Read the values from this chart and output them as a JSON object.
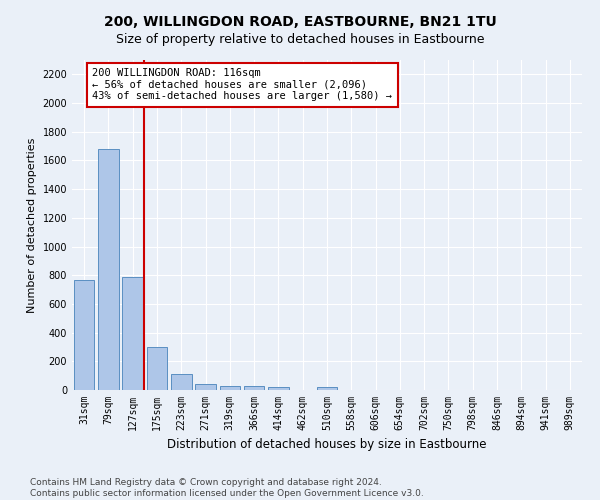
{
  "title": "200, WILLINGDON ROAD, EASTBOURNE, BN21 1TU",
  "subtitle": "Size of property relative to detached houses in Eastbourne",
  "xlabel": "Distribution of detached houses by size in Eastbourne",
  "ylabel": "Number of detached properties",
  "categories": [
    "31sqm",
    "79sqm",
    "127sqm",
    "175sqm",
    "223sqm",
    "271sqm",
    "319sqm",
    "366sqm",
    "414sqm",
    "462sqm",
    "510sqm",
    "558sqm",
    "606sqm",
    "654sqm",
    "702sqm",
    "750sqm",
    "798sqm",
    "846sqm",
    "894sqm",
    "941sqm",
    "989sqm"
  ],
  "values": [
    770,
    1680,
    790,
    300,
    110,
    45,
    30,
    25,
    20,
    0,
    20,
    0,
    0,
    0,
    0,
    0,
    0,
    0,
    0,
    0,
    0
  ],
  "bar_color": "#aec6e8",
  "bar_edge_color": "#5a8fc2",
  "vline_x": 2.48,
  "vline_color": "#cc0000",
  "annotation_text": "200 WILLINGDON ROAD: 116sqm\n← 56% of detached houses are smaller (2,096)\n43% of semi-detached houses are larger (1,580) →",
  "annotation_box_color": "#ffffff",
  "annotation_box_edge_color": "#cc0000",
  "ylim": [
    0,
    2300
  ],
  "yticks": [
    0,
    200,
    400,
    600,
    800,
    1000,
    1200,
    1400,
    1600,
    1800,
    2000,
    2200
  ],
  "bg_color": "#eaf0f8",
  "plot_bg_color": "#eaf0f8",
  "footer": "Contains HM Land Registry data © Crown copyright and database right 2024.\nContains public sector information licensed under the Open Government Licence v3.0.",
  "title_fontsize": 10,
  "subtitle_fontsize": 9,
  "xlabel_fontsize": 8.5,
  "ylabel_fontsize": 8,
  "footer_fontsize": 6.5,
  "tick_fontsize": 7
}
